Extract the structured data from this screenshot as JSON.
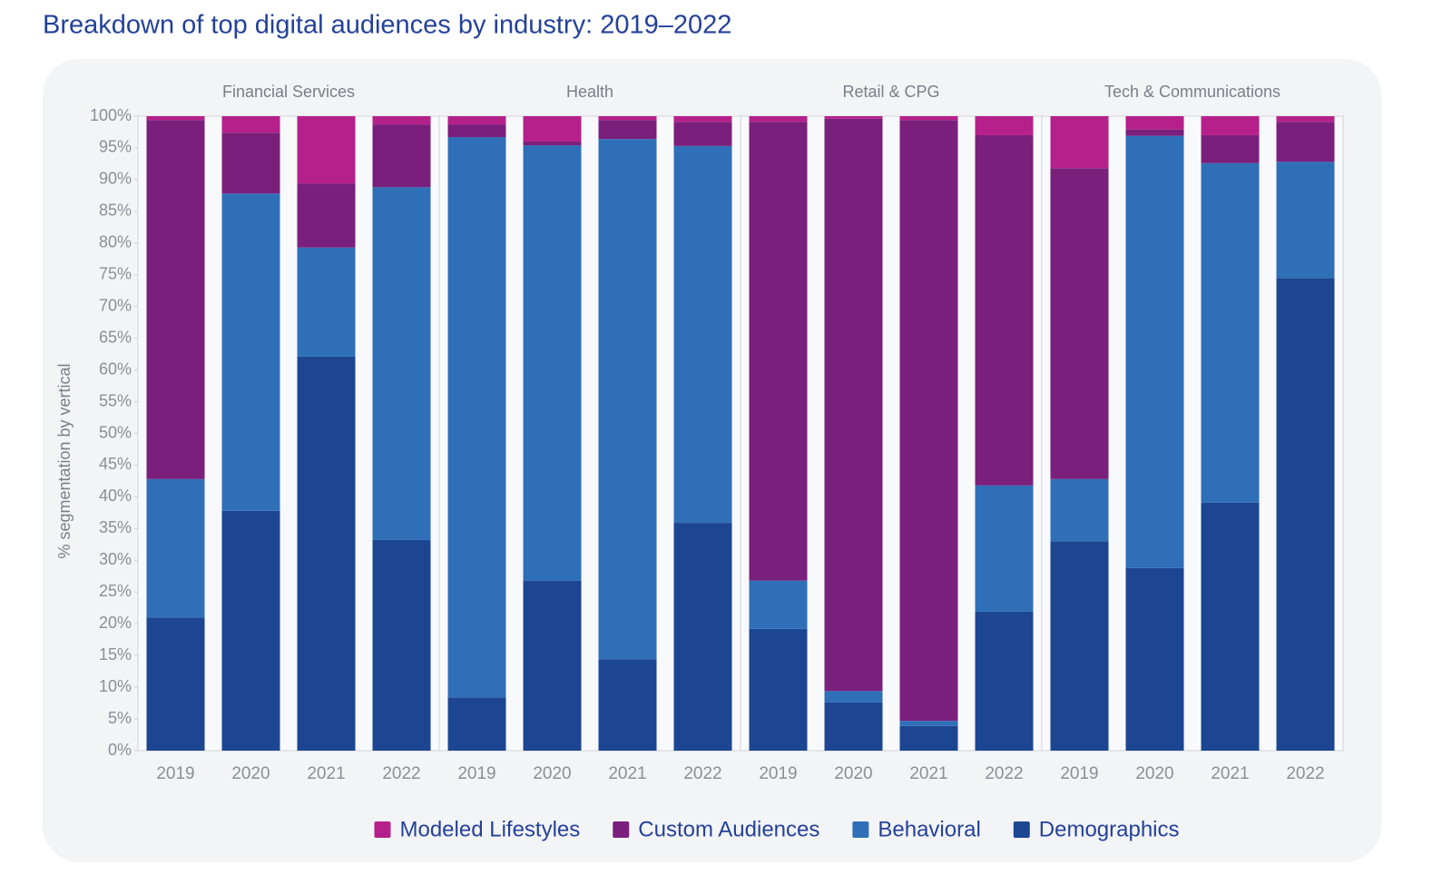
{
  "chart_data": {
    "type": "bar",
    "stacked": true,
    "title": "Breakdown of top digital audiences by industry: 2019–2022",
    "ylabel": "% segmentation by vertical",
    "groups": [
      "Financial Services",
      "Health",
      "Retail & CPG",
      "Tech & Communications"
    ],
    "categories": [
      "2019",
      "2020",
      "2021",
      "2022",
      "2019",
      "2020",
      "2021",
      "2022",
      "2019",
      "2020",
      "2021",
      "2022",
      "2019",
      "2020",
      "2021",
      "2022"
    ],
    "series": [
      {
        "name": "Demographics",
        "color": "#1c4692",
        "values": [
          21.0,
          37.8,
          62.1,
          33.2,
          8.4,
          26.8,
          14.4,
          35.9,
          19.2,
          7.6,
          3.9,
          21.9,
          33.0,
          28.8,
          39.1,
          74.5
        ]
      },
      {
        "name": "Behavioral",
        "color": "#2f6fb8",
        "values": [
          21.8,
          50.0,
          17.2,
          55.6,
          88.3,
          68.6,
          82.0,
          59.4,
          7.6,
          1.8,
          0.8,
          19.9,
          9.8,
          68.1,
          53.5,
          18.3
        ]
      },
      {
        "name": "Custom Audiences",
        "color": "#7a1f7c",
        "values": [
          56.6,
          9.6,
          10.1,
          9.9,
          2.0,
          0.6,
          3.0,
          3.8,
          72.3,
          90.2,
          94.7,
          55.2,
          49.0,
          1.0,
          4.4,
          6.3
        ]
      },
      {
        "name": "Modeled Lifestyles",
        "color": "#b5208a",
        "values": [
          0.6,
          2.6,
          10.6,
          1.3,
          1.3,
          4.0,
          0.6,
          0.9,
          0.9,
          0.4,
          0.6,
          3.0,
          8.2,
          2.1,
          3.0,
          0.9
        ]
      }
    ],
    "legend_order": [
      3,
      2,
      1,
      0
    ],
    "ylim": [
      0,
      100
    ],
    "yticks": [
      {
        "value": 0,
        "label": "0%"
      },
      {
        "value": 5,
        "label": "5%"
      },
      {
        "value": 10,
        "label": "10%"
      },
      {
        "value": 15,
        "label": "15%"
      },
      {
        "value": 20,
        "label": "20%"
      },
      {
        "value": 25,
        "label": "25%"
      },
      {
        "value": 30,
        "label": "30%"
      },
      {
        "value": 35,
        "label": "35%"
      },
      {
        "value": 40,
        "label": "40%"
      },
      {
        "value": 45,
        "label": "45%"
      },
      {
        "value": 50,
        "label": "50%"
      },
      {
        "value": 55,
        "label": "55%"
      },
      {
        "value": 60,
        "label": "60%"
      },
      {
        "value": 65,
        "label": "65%"
      },
      {
        "value": 70,
        "label": "70%"
      },
      {
        "value": 75,
        "label": "75%"
      },
      {
        "value": 80,
        "label": "80%"
      },
      {
        "value": 85,
        "label": "85%"
      },
      {
        "value": 90,
        "label": "90%"
      },
      {
        "value": 95,
        "label": "95%"
      },
      {
        "value": 100,
        "label": "100%"
      }
    ],
    "legend": "bottom"
  }
}
